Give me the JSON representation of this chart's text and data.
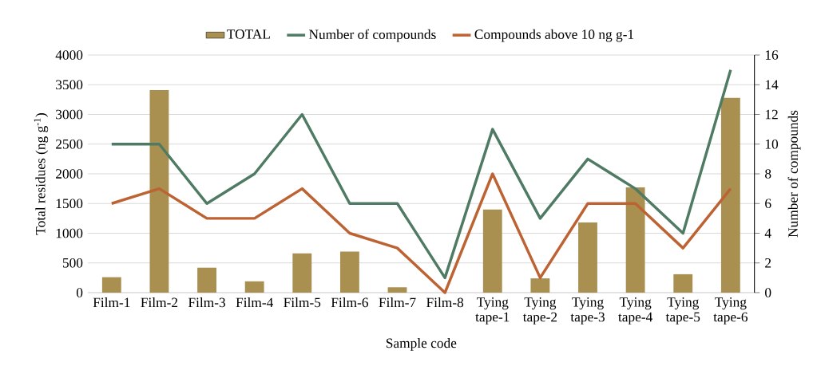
{
  "chart_data": {
    "type": "bar",
    "xlabel": "Sample code",
    "ylabel": "Total residues (ng g$^{-1}$)",
    "y2label": "Number of compounds",
    "categories": [
      "Film-1",
      "Film-2",
      "Film-3",
      "Film-4",
      "Film-5",
      "Film-6",
      "Film-7",
      "Film-8",
      "Tying tape-1",
      "Tying tape-2",
      "Tying tape-3",
      "Tying tape-4",
      "Tying tape-5",
      "Tying tape-6"
    ],
    "series": [
      {
        "name": "TOTAL",
        "color": "#a99050",
        "values": [
          260,
          3410,
          420,
          190,
          660,
          690,
          90,
          0,
          1400,
          240,
          1180,
          1770,
          310,
          3280
        ]
      },
      {
        "name": "Number of compounds",
        "type": "line",
        "axis": "y2",
        "color": "#4f7a63",
        "values": [
          10,
          10,
          6,
          8,
          12,
          6,
          6,
          1,
          11,
          5,
          9,
          7,
          4,
          15
        ]
      },
      {
        "name": "Compounds above 10 ng g-1",
        "type": "line",
        "axis": "y2",
        "color": "#bd6333",
        "values": [
          6,
          7,
          5,
          5,
          7,
          4,
          3,
          0,
          8,
          1,
          6,
          6,
          3,
          7
        ]
      }
    ],
    "ylim": [
      0,
      4000
    ],
    "yticks": [
      0,
      500,
      1000,
      1500,
      2000,
      2500,
      3000,
      3500,
      4000
    ],
    "y2lim": [
      0,
      16
    ],
    "y2ticks": [
      0,
      2,
      4,
      6,
      8,
      10,
      12,
      14,
      16
    ],
    "grid": "y",
    "legend": "top"
  }
}
